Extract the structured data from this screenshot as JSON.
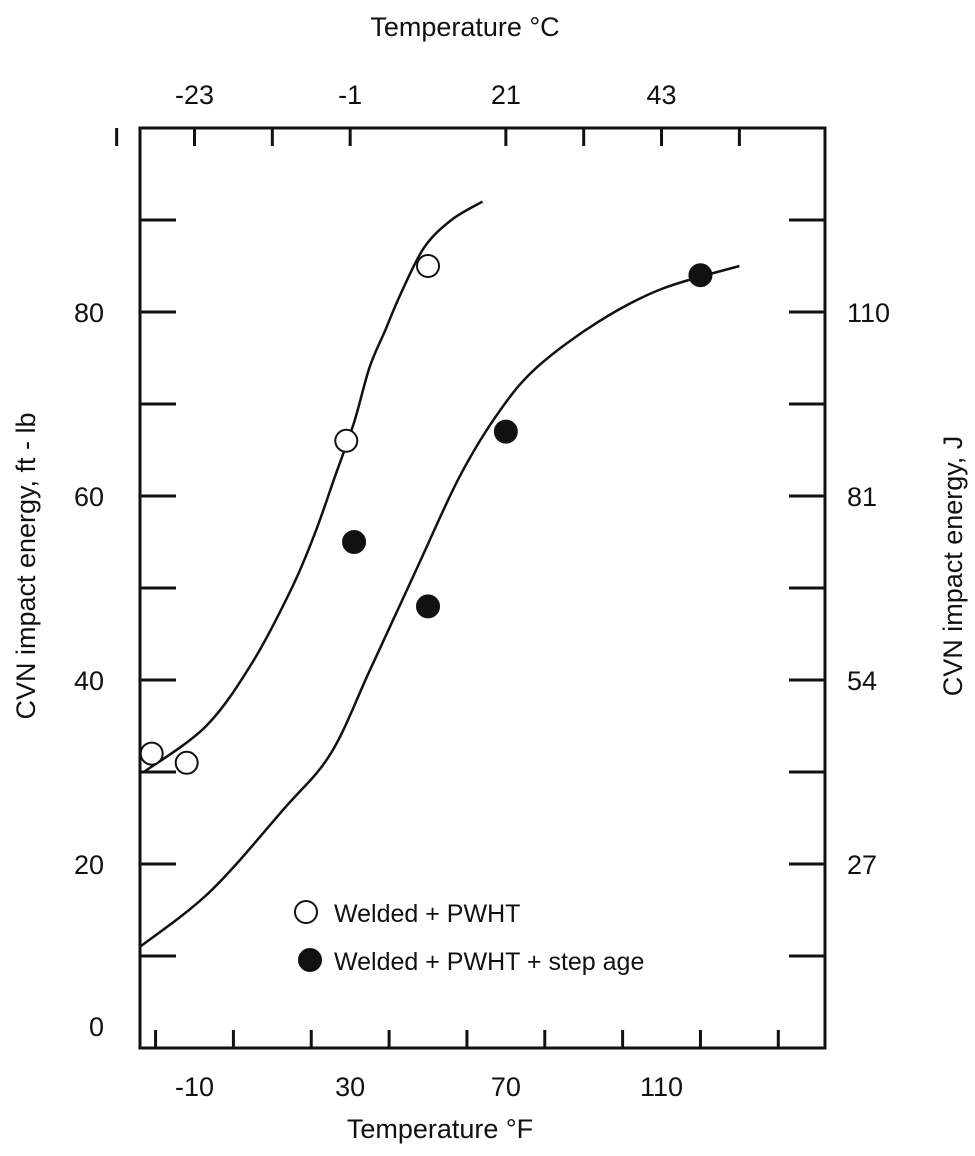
{
  "chart_data": {
    "type": "scatter",
    "title": "",
    "x_top_label": "Temperature °C",
    "x_bottom_label": "Temperature °F",
    "y_left_label": "CVN impact energy, ft - lb",
    "y_right_label": "CVN impact energy, J",
    "x_bottom_ticks": [
      -10,
      30,
      70,
      110
    ],
    "x_top_ticks": [
      {
        "label": "-23",
        "at_F": -10
      },
      {
        "label": "-1",
        "at_F": 30
      },
      {
        "label": "21",
        "at_F": 70
      },
      {
        "label": "43",
        "at_F": 110
      }
    ],
    "y_left_ticks": [
      0,
      20,
      40,
      60,
      80
    ],
    "y_right_ticks": [
      {
        "label": "27",
        "at_ftlb": 20
      },
      {
        "label": "54",
        "at_ftlb": 40
      },
      {
        "label": "81",
        "at_ftlb": 60
      },
      {
        "label": "110",
        "at_ftlb": 80
      }
    ],
    "xlim": [
      -24,
      152
    ],
    "ylim": [
      0,
      100
    ],
    "grid": false,
    "legend_position": "bottom-center",
    "series": [
      {
        "name": "Welded + PWHT",
        "marker": "open-circle",
        "points": [
          [
            -21,
            32
          ],
          [
            -12,
            31
          ],
          [
            29,
            66
          ],
          [
            50,
            85
          ]
        ],
        "curve": [
          [
            -23,
            30
          ],
          [
            -7,
            35
          ],
          [
            5,
            42
          ],
          [
            15,
            50
          ],
          [
            21,
            56
          ],
          [
            26,
            62
          ],
          [
            31,
            68
          ],
          [
            35,
            74
          ],
          [
            39,
            78
          ],
          [
            43,
            82
          ],
          [
            49,
            87
          ],
          [
            56,
            90
          ],
          [
            64,
            92
          ]
        ]
      },
      {
        "name": "Welded + PWHT + step age",
        "marker": "filled-circle",
        "points": [
          [
            31,
            55
          ],
          [
            50,
            48
          ],
          [
            70,
            67
          ],
          [
            120,
            84
          ]
        ],
        "curve": [
          [
            -24,
            11
          ],
          [
            -6,
            17
          ],
          [
            13,
            26
          ],
          [
            25,
            32
          ],
          [
            35,
            41
          ],
          [
            47,
            52
          ],
          [
            58,
            62
          ],
          [
            68,
            69
          ],
          [
            78,
            74
          ],
          [
            94,
            79
          ],
          [
            110,
            82.5
          ],
          [
            130,
            85
          ]
        ]
      }
    ]
  }
}
